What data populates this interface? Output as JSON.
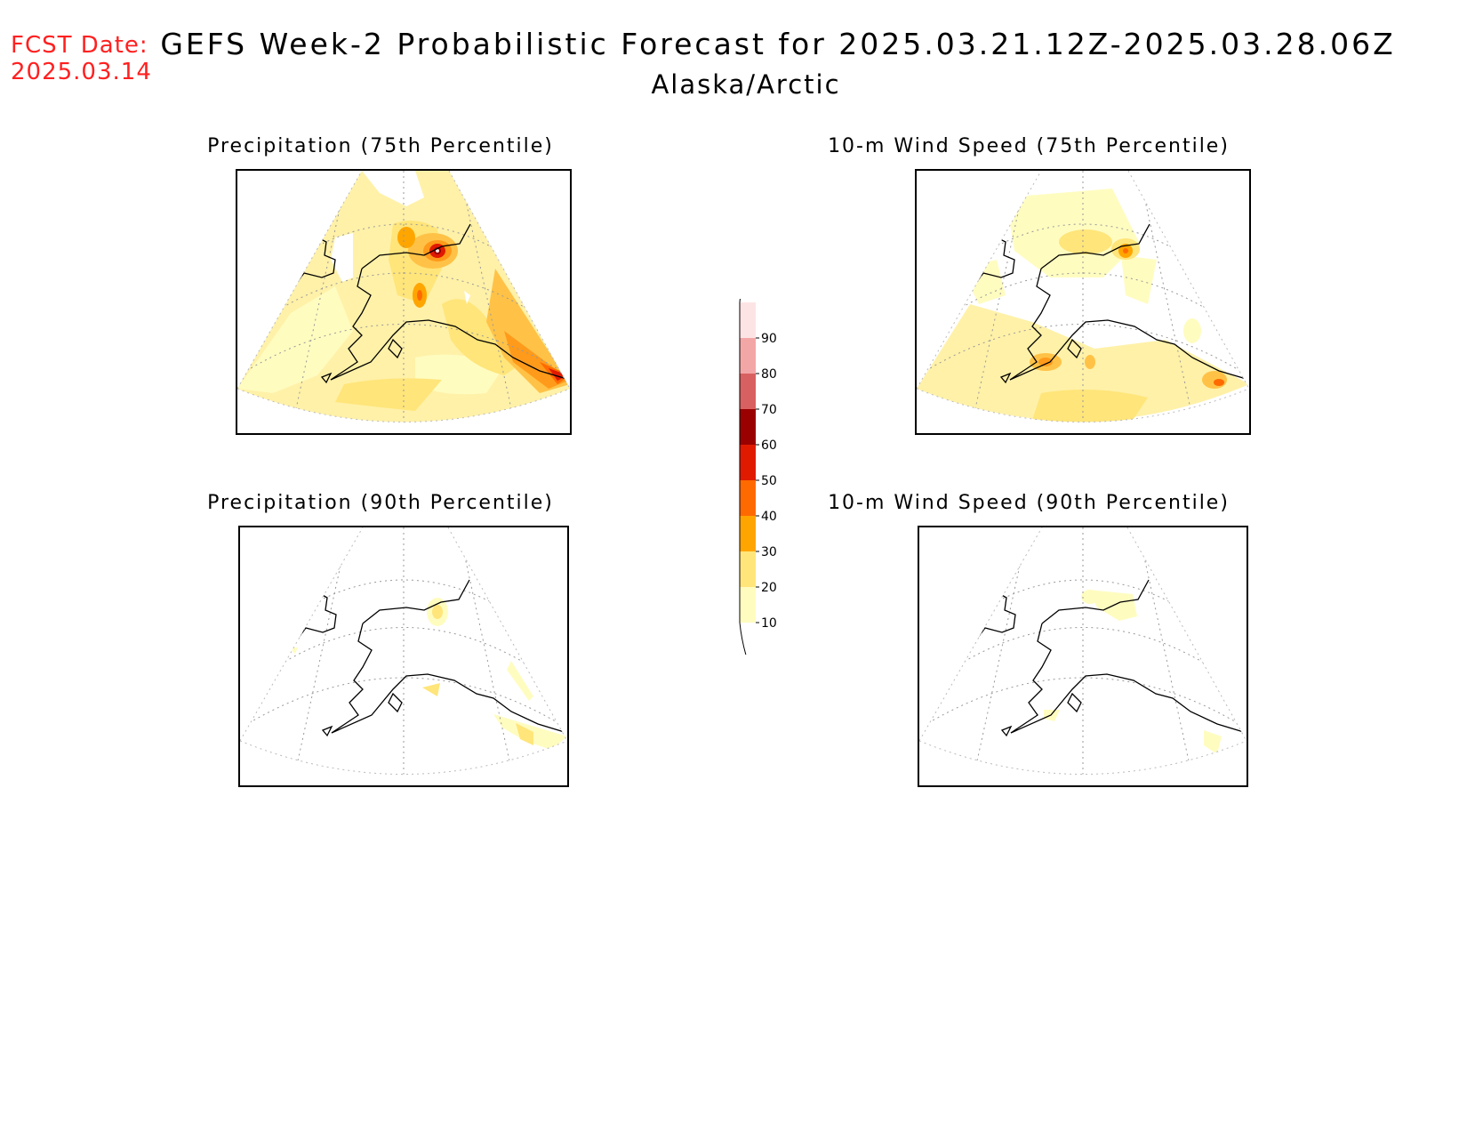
{
  "fcst_date": {
    "label": "FCST Date:",
    "date": "2025.03.14"
  },
  "title": {
    "line1": "GEFS Week-2 Probabilistic Forecast for 2025.03.21.12Z-2025.03.28.06Z",
    "line2": "Alaska/Arctic"
  },
  "panels": [
    {
      "id": "precip-75",
      "title": "Precipitation (75th Percentile)"
    },
    {
      "id": "wind-75",
      "title": "10-m Wind Speed (75th Percentile)"
    },
    {
      "id": "precip-90",
      "title": "Precipitation (90th Percentile)"
    },
    {
      "id": "wind-90",
      "title": "10-m Wind Speed (90th Percentile)"
    }
  ],
  "colorbar": {
    "levels": [
      "10",
      "20",
      "30",
      "40",
      "50",
      "60",
      "70",
      "80",
      "90"
    ],
    "colors": [
      "#fffcc0",
      "#ffe57a",
      "#ffa500",
      "#ff6a00",
      "#e01a00",
      "#9a0000",
      "#d96060",
      "#f3a6a6",
      "#fde4e4"
    ]
  }
}
